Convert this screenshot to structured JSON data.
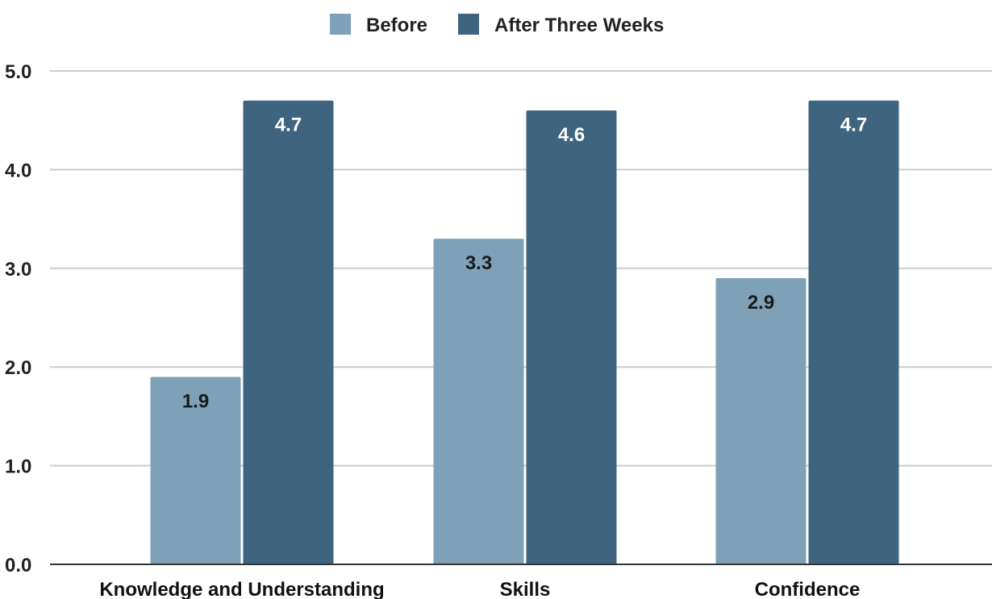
{
  "chart_data": {
    "type": "bar",
    "categories": [
      "Knowledge and Understanding",
      "Skills",
      "Confidence"
    ],
    "series": [
      {
        "name": "Before",
        "values": [
          1.9,
          3.3,
          2.9
        ],
        "display": [
          "1.9",
          "3.3",
          "2.9"
        ],
        "color": "#7fa1b7",
        "label_color": "#1a1a1a"
      },
      {
        "name": "After Three Weeks",
        "values": [
          4.7,
          4.6,
          4.7
        ],
        "display": [
          "4.7",
          "4.6",
          "4.7"
        ],
        "color": "#3f647f",
        "label_color": "#ffffff"
      }
    ],
    "yticks": [
      "0.0",
      "1.0",
      "2.0",
      "3.0",
      "4.0",
      "5.0"
    ],
    "ylim": [
      0,
      5
    ],
    "grid": true,
    "legend_position": "top-center",
    "title": "",
    "xlabel": "",
    "ylabel": ""
  }
}
